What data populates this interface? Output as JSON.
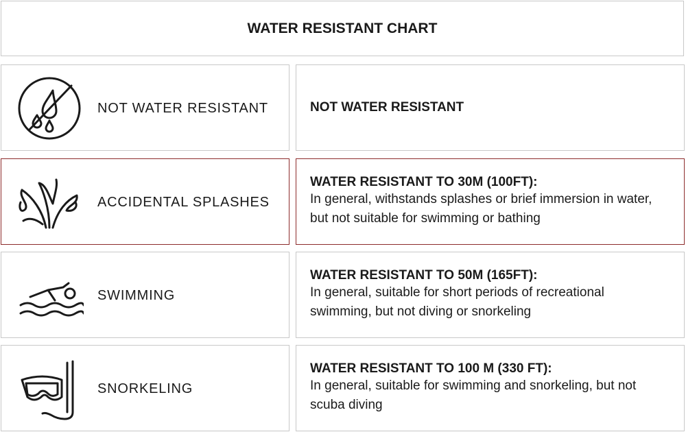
{
  "header": {
    "title": "WATER RESISTANT CHART"
  },
  "rows": [
    {
      "label": "NOT WATER RESISTANT",
      "heading": "NOT WATER RESISTANT",
      "highlight": false
    },
    {
      "label": "ACCIDENTAL SPLASHES",
      "heading": "WATER RESISTANT TO 30M (100FT):",
      "description": "In general, withstands splashes or brief immersion in water, but not suitable for swimming or bathing",
      "highlight": true
    },
    {
      "label": "SWIMMING",
      "heading": "WATER RESISTANT TO 50M (165FT):",
      "description": "In general, suitable for short periods of recreational swimming, but not diving or snorkeling",
      "highlight": false
    },
    {
      "label": "SNORKELING",
      "heading": "WATER RESISTANT TO 100 M (330 FT):",
      "description": "In general, suitable for swimming and snorkeling, but not scuba diving",
      "highlight": false
    }
  ]
}
